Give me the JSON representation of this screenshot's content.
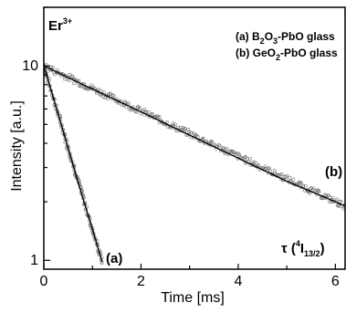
{
  "chart_data": {
    "type": "scatter",
    "title": "",
    "xlabel": "Time [ms]",
    "ylabel": "Intensity [a.u.]",
    "xlim": [
      0,
      6.2
    ],
    "ylim": [
      0.9,
      20
    ],
    "yscale": "log",
    "grid": false,
    "x_ticks": [
      "0",
      "2",
      "4",
      "6"
    ],
    "y_ticks": [
      "1",
      "10"
    ],
    "annotations": {
      "ion": "Er",
      "ion_charge": "3+",
      "label_a": "(a)",
      "label_b": "(b)",
      "transition_prefix": "τ (",
      "transition_sup": "4",
      "transition_main": "I",
      "transition_sub": "13/2",
      "transition_suffix": ")"
    },
    "legend": {
      "position": "top-right",
      "entries": [
        {
          "prefix": "(a) B",
          "sub1": "2",
          "mid": "O",
          "sub2": "3",
          "suffix": "-PbO glass"
        },
        {
          "prefix": "(b) GeO",
          "sub1": "2",
          "mid": "-PbO glass",
          "sub2": "",
          "suffix": ""
        }
      ]
    },
    "series": [
      {
        "name": "(a) B2O3-PbO glass",
        "x": [
          0,
          0.2,
          0.4,
          0.6,
          0.8,
          1.0,
          1.2
        ],
        "y": [
          10,
          6.8,
          4.6,
          3.1,
          2.1,
          1.45,
          0.98
        ]
      },
      {
        "name": "(b) GeO2-PbO glass",
        "x": [
          0,
          1,
          2,
          3,
          4,
          5,
          6,
          6.2
        ],
        "y": [
          10,
          7.6,
          5.8,
          4.4,
          3.35,
          2.55,
          2.0,
          1.9
        ]
      }
    ]
  }
}
